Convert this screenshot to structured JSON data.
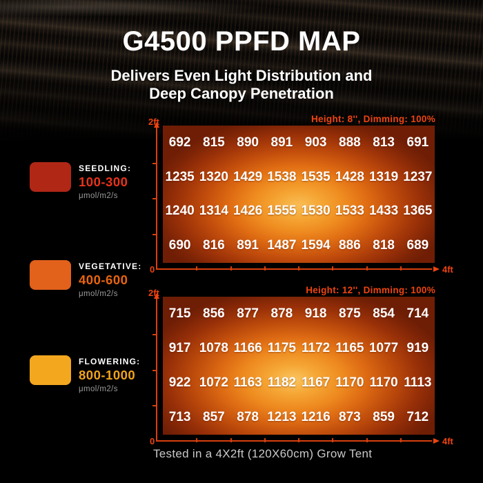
{
  "header": {
    "title": "G4500 PPFD MAP",
    "subtitle_line1": "Delivers Even Light Distribution and",
    "subtitle_line2": "Deep Canopy Penetration"
  },
  "legend": {
    "items": [
      {
        "label": "SEEDLING:",
        "range": "100-300",
        "unit": "μmol/m2/s",
        "swatch_color": "#b02716",
        "range_color": "#e8331b"
      },
      {
        "label": "VEGETATIVE:",
        "range": "400-600",
        "unit": "μmol/m2/s",
        "swatch_color": "#e2611b",
        "range_color": "#e8650f"
      },
      {
        "label": "FLOWERING:",
        "range": "800-1000",
        "unit": "μmol/m2/s",
        "swatch_color": "#f3a71f",
        "range_color": "#f0a41c"
      }
    ]
  },
  "chart_data": [
    {
      "type": "heatmap",
      "condition_label": "Height: 8'', Dimming: 100%",
      "y_axis": {
        "max_label": "2ft",
        "origin_label": "0"
      },
      "x_axis": {
        "max_label": "4ft"
      },
      "columns": 8,
      "unit": "μmol/m2/s PPFD",
      "rows": [
        [
          692,
          815,
          890,
          891,
          903,
          888,
          813,
          691
        ],
        [
          1235,
          1320,
          1429,
          1538,
          1535,
          1428,
          1319,
          1237
        ],
        [
          1240,
          1314,
          1426,
          1555,
          1530,
          1533,
          1433,
          1365
        ],
        [
          690,
          816,
          891,
          1487,
          1594,
          886,
          818,
          689
        ]
      ]
    },
    {
      "type": "heatmap",
      "condition_label": "Height: 12'', Dimming: 100%",
      "y_axis": {
        "max_label": "2ft",
        "origin_label": "0"
      },
      "x_axis": {
        "max_label": "4ft"
      },
      "columns": 8,
      "unit": "μmol/m2/s PPFD",
      "rows": [
        [
          715,
          856,
          877,
          878,
          918,
          875,
          854,
          714
        ],
        [
          917,
          1078,
          1166,
          1175,
          1172,
          1165,
          1077,
          919
        ],
        [
          922,
          1072,
          1163,
          1182,
          1167,
          1170,
          1170,
          1113
        ],
        [
          713,
          857,
          878,
          1213,
          1216,
          873,
          859,
          712
        ]
      ]
    }
  ],
  "footer": {
    "caption": "Tested in a 4X2ft (120X60cm) Grow Tent"
  },
  "colors": {
    "accent": "#ee4410",
    "axis": "#d9400e",
    "value_text": "#ffffff",
    "caption_text": "#c9c9c9"
  }
}
